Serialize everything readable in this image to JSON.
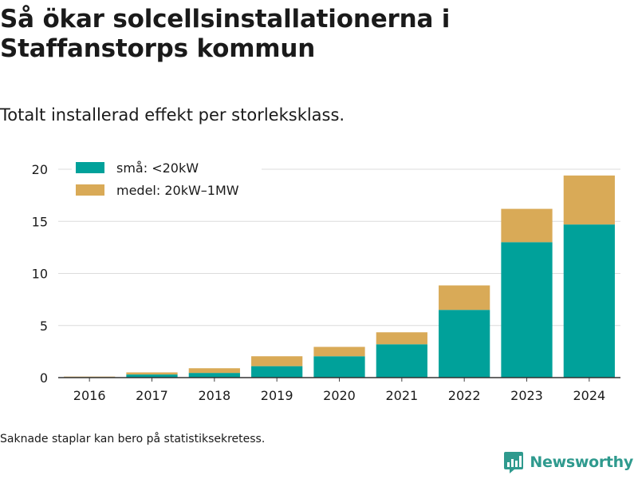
{
  "header": {
    "title": "Så ökar solcellsinstallationerna i Staffanstorps kommun",
    "subtitle": "Totalt installerad effekt per storleksklass."
  },
  "footnote": "Saknade staplar kan bero på statistiksekretess.",
  "brand": {
    "name": "Newsworthy",
    "icon": "newsworthy-logo-icon",
    "color": "#2f9a8e"
  },
  "chart_data": {
    "type": "bar",
    "stacked": true,
    "title": "",
    "xlabel": "",
    "ylabel": "",
    "categories": [
      "2016",
      "2017",
      "2018",
      "2019",
      "2020",
      "2021",
      "2022",
      "2023",
      "2024"
    ],
    "series": [
      {
        "name": "små: <20kW",
        "color": "#00a19a",
        "values": [
          0.05,
          0.3,
          0.45,
          1.1,
          2.05,
          3.2,
          6.5,
          13.0,
          14.7
        ]
      },
      {
        "name": "medel: 20kW–1MW",
        "color": "#d9aa57",
        "values": [
          0.05,
          0.2,
          0.45,
          0.95,
          0.9,
          1.15,
          2.35,
          3.2,
          4.7
        ]
      }
    ],
    "ylim": [
      0,
      20
    ],
    "yticks": [
      0,
      5,
      10,
      15,
      20
    ],
    "grid": true,
    "legend": "top-left"
  }
}
